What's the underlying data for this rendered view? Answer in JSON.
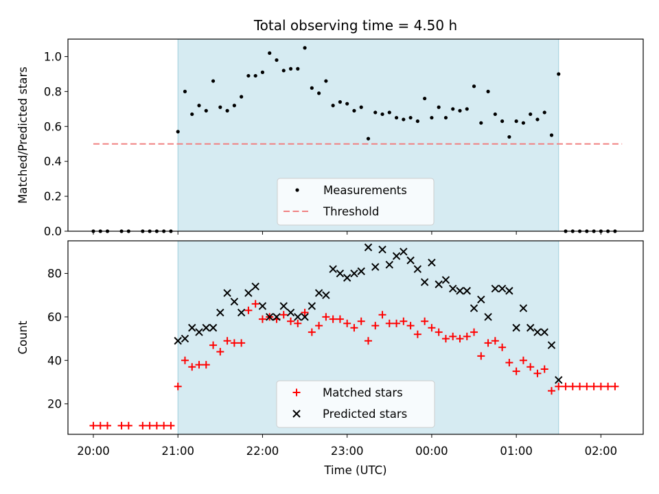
{
  "chart_data": [
    {
      "type": "scatter",
      "title": "Total observing time = 4.50 h",
      "ylabel": "Matched/Predicted stars",
      "xlabel": "",
      "ylim": [
        0,
        1.1
      ],
      "yticks": [
        "0.0",
        "0.2",
        "0.4",
        "0.6",
        "0.8",
        "1.0"
      ],
      "shaded_interval": [
        "21:00",
        "01:30"
      ],
      "legend": {
        "placement": "bottom-center",
        "entries": [
          "Measurements",
          "Threshold"
        ]
      },
      "threshold": {
        "name": "Threshold",
        "value": 0.5,
        "x_range": [
          "20:00",
          "02:15"
        ],
        "color": "#f08080"
      },
      "series": [
        {
          "name": "Measurements",
          "color": "#000000",
          "x": [
            "20:00",
            "20:05",
            "20:10",
            "20:20",
            "20:25",
            "20:35",
            "20:40",
            "20:45",
            "20:50",
            "20:55",
            "21:00",
            "21:05",
            "21:10",
            "21:15",
            "21:20",
            "21:25",
            "21:30",
            "21:35",
            "21:40",
            "21:45",
            "21:50",
            "21:55",
            "22:00",
            "22:05",
            "22:10",
            "22:15",
            "22:20",
            "22:25",
            "22:30",
            "22:35",
            "22:40",
            "22:45",
            "22:50",
            "22:55",
            "23:00",
            "23:05",
            "23:10",
            "23:15",
            "23:20",
            "23:25",
            "23:30",
            "23:35",
            "23:40",
            "23:45",
            "23:50",
            "23:55",
            "00:00",
            "00:05",
            "00:10",
            "00:15",
            "00:20",
            "00:25",
            "00:30",
            "00:35",
            "00:40",
            "00:45",
            "00:50",
            "00:55",
            "01:00",
            "01:05",
            "01:10",
            "01:15",
            "01:20",
            "01:25",
            "01:30",
            "01:35",
            "01:40",
            "01:45",
            "01:50",
            "01:55",
            "02:00",
            "02:05",
            "02:10"
          ],
          "values": [
            0,
            0,
            0,
            0,
            0,
            0,
            0,
            0,
            0,
            0,
            0.57,
            0.8,
            0.67,
            0.72,
            0.69,
            0.86,
            0.71,
            0.69,
            0.72,
            0.77,
            0.89,
            0.89,
            0.91,
            1.02,
            0.98,
            0.92,
            0.93,
            0.93,
            1.05,
            0.82,
            0.79,
            0.86,
            0.72,
            0.74,
            0.73,
            0.69,
            0.71,
            0.53,
            0.68,
            0.67,
            0.68,
            0.65,
            0.64,
            0.65,
            0.63,
            0.76,
            0.65,
            0.71,
            0.65,
            0.7,
            0.69,
            0.7,
            0.83,
            0.62,
            0.8,
            0.67,
            0.63,
            0.54,
            0.63,
            0.62,
            0.67,
            0.64,
            0.68,
            0.55,
            0.9,
            0,
            0,
            0,
            0,
            0,
            0,
            0,
            0
          ]
        }
      ]
    },
    {
      "type": "scatter",
      "title": "",
      "ylabel": "Count",
      "xlabel": "Time (UTC)",
      "ylim": [
        6,
        95
      ],
      "yticks": [
        "20",
        "40",
        "60",
        "80"
      ],
      "xticks": [
        "20:00",
        "21:00",
        "22:00",
        "23:00",
        "00:00",
        "01:00",
        "02:00"
      ],
      "shaded_interval": [
        "21:00",
        "01:30"
      ],
      "legend": {
        "placement": "bottom-center",
        "entries": [
          "Matched stars",
          "Predicted stars"
        ]
      },
      "series": [
        {
          "name": "Matched stars",
          "color": "#ff0000",
          "marker": "plus",
          "x": [
            "20:00",
            "20:05",
            "20:10",
            "20:20",
            "20:25",
            "20:35",
            "20:40",
            "20:45",
            "20:50",
            "20:55",
            "21:00",
            "21:05",
            "21:10",
            "21:15",
            "21:20",
            "21:25",
            "21:30",
            "21:35",
            "21:40",
            "21:45",
            "21:50",
            "21:55",
            "22:00",
            "22:05",
            "22:10",
            "22:15",
            "22:20",
            "22:25",
            "22:30",
            "22:35",
            "22:40",
            "22:45",
            "22:50",
            "22:55",
            "23:00",
            "23:05",
            "23:10",
            "23:15",
            "23:20",
            "23:25",
            "23:30",
            "23:35",
            "23:40",
            "23:45",
            "23:50",
            "23:55",
            "00:00",
            "00:05",
            "00:10",
            "00:15",
            "00:20",
            "00:25",
            "00:30",
            "00:35",
            "00:40",
            "00:45",
            "00:50",
            "00:55",
            "01:00",
            "01:05",
            "01:10",
            "01:15",
            "01:20",
            "01:25",
            "01:30",
            "01:35",
            "01:40",
            "01:45",
            "01:50",
            "01:55",
            "02:00",
            "02:05",
            "02:10"
          ],
          "values": [
            10,
            10,
            10,
            10,
            10,
            10,
            10,
            10,
            10,
            10,
            28,
            40,
            37,
            38,
            38,
            47,
            44,
            49,
            48,
            48,
            63,
            66,
            59,
            60,
            59,
            61,
            58,
            57,
            62,
            53,
            56,
            60,
            59,
            59,
            57,
            55,
            58,
            49,
            56,
            61,
            57,
            57,
            58,
            56,
            52,
            58,
            55,
            53,
            50,
            51,
            50,
            51,
            53,
            42,
            48,
            49,
            46,
            39,
            35,
            40,
            37,
            34,
            36,
            26,
            28,
            28,
            28,
            28,
            28,
            28,
            28,
            28,
            28
          ]
        },
        {
          "name": "Predicted stars",
          "color": "#000000",
          "marker": "x",
          "x": [
            "21:00",
            "21:05",
            "21:10",
            "21:15",
            "21:20",
            "21:25",
            "21:30",
            "21:35",
            "21:40",
            "21:45",
            "21:50",
            "21:55",
            "22:00",
            "22:05",
            "22:10",
            "22:15",
            "22:20",
            "22:25",
            "22:30",
            "22:35",
            "22:40",
            "22:45",
            "22:50",
            "22:55",
            "23:00",
            "23:05",
            "23:10",
            "23:15",
            "23:20",
            "23:25",
            "23:30",
            "23:35",
            "23:40",
            "23:45",
            "23:50",
            "23:55",
            "00:00",
            "00:05",
            "00:10",
            "00:15",
            "00:20",
            "00:25",
            "00:30",
            "00:35",
            "00:40",
            "00:45",
            "00:50",
            "00:55",
            "01:00",
            "01:05",
            "01:10",
            "01:15",
            "01:20",
            "01:25",
            "01:30"
          ],
          "values": [
            49,
            50,
            55,
            53,
            55,
            55,
            62,
            71,
            67,
            62,
            71,
            74,
            65,
            60,
            60,
            65,
            62,
            60,
            60,
            65,
            71,
            70,
            82,
            80,
            78,
            80,
            81,
            92,
            83,
            91,
            84,
            88,
            90,
            86,
            82,
            76,
            85,
            75,
            77,
            73,
            72,
            72,
            64,
            68,
            60,
            73,
            73,
            72,
            55,
            64,
            55,
            53,
            53,
            47,
            31
          ]
        }
      ]
    }
  ]
}
